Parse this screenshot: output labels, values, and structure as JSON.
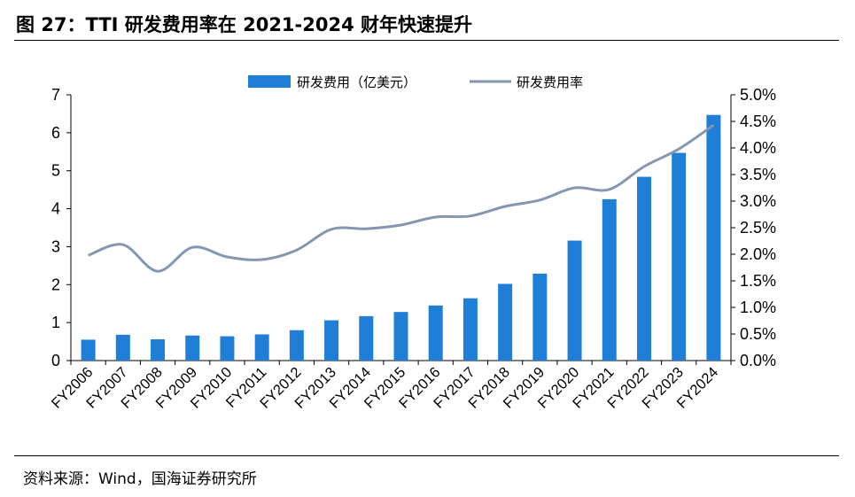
{
  "header": {
    "title": "图 27：TTI 研发费用率在 2021-2024 财年快速提升"
  },
  "footer": {
    "source": "资料来源：Wind，国海证券研究所"
  },
  "chart_data": {
    "type": "bar+line",
    "title": "",
    "categories": [
      "FY2006",
      "FY2007",
      "FY2008",
      "FY2009",
      "FY2010",
      "FY2011",
      "FY2012",
      "FY2013",
      "FY2014",
      "FY2015",
      "FY2016",
      "FY2017",
      "FY2018",
      "FY2019",
      "FY2020",
      "FY2021",
      "FY2022",
      "FY2023",
      "FY2024"
    ],
    "series": [
      {
        "name": "研发费用（亿美元）",
        "type": "bar",
        "axis": "left",
        "color": "#1f7fd6",
        "values": [
          0.55,
          0.68,
          0.56,
          0.66,
          0.64,
          0.69,
          0.8,
          1.06,
          1.17,
          1.28,
          1.45,
          1.64,
          2.02,
          2.29,
          3.16,
          4.25,
          4.84,
          5.47,
          6.47
        ]
      },
      {
        "name": "研发费用率",
        "type": "line",
        "axis": "right",
        "color": "#8496b0",
        "values": [
          0.0198,
          0.0218,
          0.0168,
          0.0213,
          0.0195,
          0.019,
          0.0208,
          0.0247,
          0.0248,
          0.0255,
          0.027,
          0.0272,
          0.029,
          0.0302,
          0.0325,
          0.0322,
          0.0365,
          0.0398,
          0.0443
        ]
      }
    ],
    "left_axis": {
      "ylim": [
        0,
        7
      ],
      "ticks": [
        "0",
        "1",
        "2",
        "3",
        "4",
        "5",
        "6",
        "7"
      ]
    },
    "right_axis": {
      "ylim": [
        0,
        0.05
      ],
      "ticks": [
        "0.0%",
        "0.5%",
        "1.0%",
        "1.5%",
        "2.0%",
        "2.5%",
        "3.0%",
        "3.5%",
        "4.0%",
        "4.5%",
        "5.0%"
      ]
    },
    "legend": {
      "position": "top-center",
      "items": [
        "研发费用（亿美元）",
        "研发费用率"
      ]
    },
    "grid": false
  }
}
